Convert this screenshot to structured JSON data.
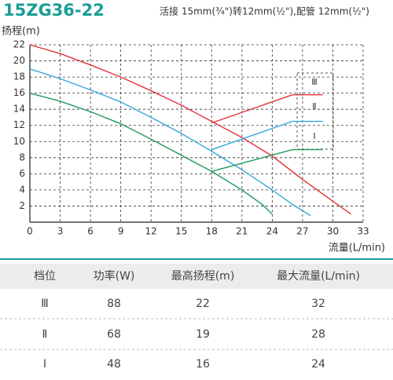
{
  "header": {
    "model": "15ZG36-22",
    "spec": "活接 15mm(¾\")转12mm(½\"),配管 12mm(½\")"
  },
  "chart_data": {
    "type": "line",
    "y_label": "扬程(m)",
    "x_label": "流量(L/min)",
    "xlim": [
      0,
      33
    ],
    "ylim": [
      0,
      22
    ],
    "xticks": [
      0,
      3,
      6,
      9,
      12,
      15,
      18,
      21,
      24,
      27,
      30,
      33
    ],
    "yticks": [
      2,
      4,
      6,
      8,
      10,
      12,
      14,
      16,
      18,
      20,
      22
    ],
    "grid": true,
    "series": [
      {
        "color": "#e5323a",
        "x": [
          0,
          3,
          6,
          9,
          12,
          15,
          18,
          21,
          24,
          27,
          30,
          31.8
        ],
        "values": [
          22,
          20.9,
          19.5,
          18,
          16.3,
          14.5,
          12.5,
          10.5,
          8.2,
          5.3,
          2.6,
          1
        ]
      },
      {
        "color": "#35a8de",
        "x": [
          0,
          3,
          6,
          9,
          12,
          15,
          18,
          21,
          24,
          26,
          27.8
        ],
        "values": [
          19,
          17.8,
          16.4,
          14.9,
          13,
          11,
          8.8,
          6.5,
          4,
          2.2,
          0.8
        ]
      },
      {
        "color": "#1e9a5c",
        "x": [
          0,
          3,
          6,
          9,
          12,
          15,
          18,
          21,
          23,
          24
        ],
        "values": [
          16,
          15,
          13.7,
          12.2,
          10.3,
          8.3,
          6.3,
          4,
          2.2,
          1
        ]
      },
      {
        "color": "#e5323a",
        "x": [
          18,
          26,
          29
        ],
        "values": [
          12.3,
          15.8,
          15.8
        ]
      },
      {
        "color": "#35a8de",
        "x": [
          18,
          26,
          29
        ],
        "values": [
          9,
          12.5,
          12.5
        ]
      },
      {
        "color": "#1e9a5c",
        "x": [
          18,
          26,
          29
        ],
        "values": [
          6.3,
          9,
          9
        ]
      }
    ],
    "annotations": [
      "Ⅲ",
      "Ⅱ",
      "Ⅰ"
    ]
  },
  "table": {
    "columns": [
      "档位",
      "功率(W)",
      "最高扬程(m)",
      "最大流量(L/min)"
    ],
    "rows": [
      [
        "Ⅲ",
        88,
        22,
        32
      ],
      [
        "Ⅱ",
        68,
        19,
        28
      ],
      [
        "Ⅰ",
        48,
        16,
        24
      ]
    ]
  }
}
